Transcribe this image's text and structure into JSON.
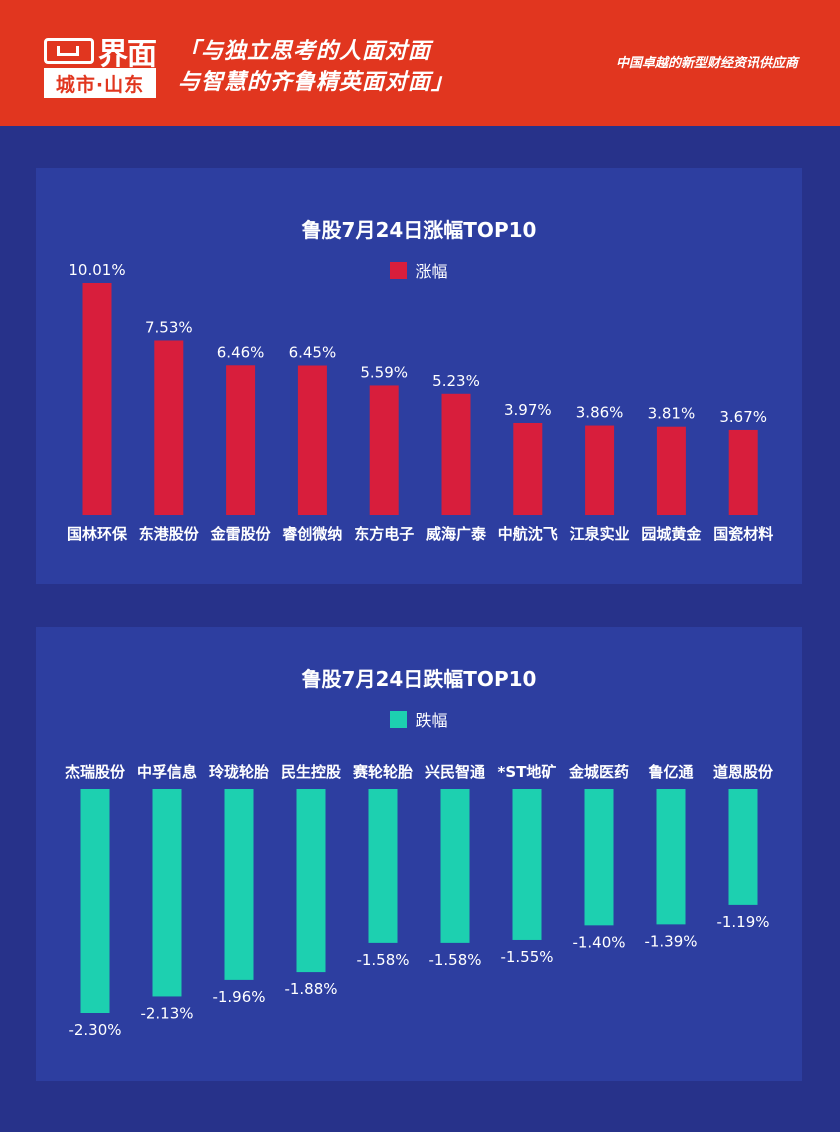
{
  "header": {
    "logo_text": "界面",
    "logo_sub": "城市·山东",
    "slogan_line1": "「与独立思考的人面对面",
    "slogan_line2": "与智慧的齐鲁精英面对面」",
    "tagline": "中国卓越的新型财经资讯供应商"
  },
  "colors": {
    "header_bg": "#e1361f",
    "page_bg": "#27328a",
    "panel_bg": "#2d3ea0",
    "gain": "#d81e3c",
    "loss": "#1dd0b0"
  },
  "chart_data": [
    {
      "type": "bar",
      "title": "鲁股7月24日涨幅TOP10",
      "categories": [
        "国林环保",
        "东港股份",
        "金雷股份",
        "睿创微纳",
        "东方电子",
        "威海广泰",
        "中航沈飞",
        "江泉实业",
        "园城黄金",
        "国瓷材料"
      ],
      "series": [
        {
          "name": "涨幅",
          "values": [
            10.01,
            7.53,
            6.46,
            6.45,
            5.59,
            5.23,
            3.97,
            3.86,
            3.81,
            3.67
          ]
        }
      ],
      "value_labels": [
        "10.01%",
        "7.53%",
        "6.46%",
        "6.45%",
        "5.59%",
        "5.23%",
        "3.97%",
        "3.86%",
        "3.81%",
        "3.67%"
      ],
      "ylim": [
        0,
        10.01
      ],
      "unit": "%",
      "legend": "top-center",
      "grid": false
    },
    {
      "type": "bar",
      "title": "鲁股7月24日跌幅TOP10",
      "categories": [
        "杰瑞股份",
        "中孚信息",
        "玲珑轮胎",
        "民生控股",
        "赛轮轮胎",
        "兴民智通",
        "*ST地矿",
        "金城医药",
        "鲁亿通",
        "道恩股份"
      ],
      "series": [
        {
          "name": "跌幅",
          "values": [
            -2.3,
            -2.13,
            -1.96,
            -1.88,
            -1.58,
            -1.58,
            -1.55,
            -1.4,
            -1.39,
            -1.19
          ]
        }
      ],
      "value_labels": [
        "-2.30%",
        "-2.13%",
        "-1.96%",
        "-1.88%",
        "-1.58%",
        "-1.58%",
        "-1.55%",
        "-1.40%",
        "-1.39%",
        "-1.19%"
      ],
      "ylim": [
        -2.3,
        0
      ],
      "unit": "%",
      "legend": "top-center",
      "grid": false
    }
  ]
}
